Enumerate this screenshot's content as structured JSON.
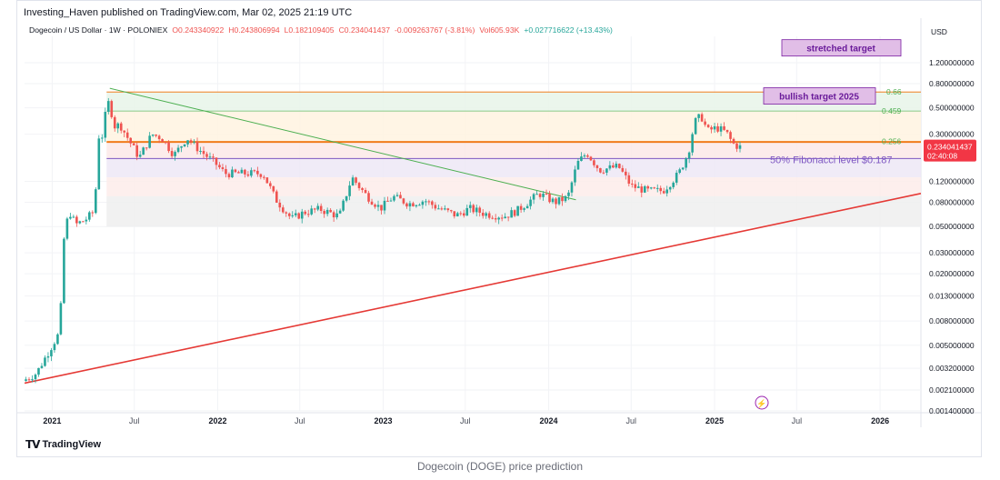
{
  "header": {
    "published": "Investing_Haven published on TradingView.com, Mar 02, 2025 21:19 UTC"
  },
  "footer": {
    "brand": "TradingView",
    "caption": "Dogecoin (DOGE) price prediction"
  },
  "chart_data": {
    "type": "candlestick",
    "legend": {
      "symbol": "Dogecoin / US Dollar · 1W · POLONIEX",
      "open": "O0.243340922",
      "high": "H0.243806994",
      "low": "L0.182109405",
      "close": "C0.234041437",
      "change": "-0.009263767 (-3.81%)",
      "volume": "Vol605.93K",
      "extra": "+0.027716622 (+13.43%)"
    },
    "currency": "USD",
    "scale": "log",
    "ylim": [
      0.0014,
      2.0
    ],
    "xlim": [
      "2020-11-01",
      "2026-04-01"
    ],
    "y_ticks": [
      {
        "value": 1.2,
        "label": "1.200000000"
      },
      {
        "value": 0.8,
        "label": "0.800000000"
      },
      {
        "value": 0.5,
        "label": "0.500000000"
      },
      {
        "value": 0.3,
        "label": "0.300000000"
      },
      {
        "value": 0.12,
        "label": "0.120000000"
      },
      {
        "value": 0.08,
        "label": "0.080000000"
      },
      {
        "value": 0.05,
        "label": "0.050000000"
      },
      {
        "value": 0.03,
        "label": "0.030000000"
      },
      {
        "value": 0.02,
        "label": "0.020000000"
      },
      {
        "value": 0.013,
        "label": "0.013000000"
      },
      {
        "value": 0.008,
        "label": "0.008000000"
      },
      {
        "value": 0.005,
        "label": "0.005000000"
      },
      {
        "value": 0.0032,
        "label": "0.003200000"
      },
      {
        "value": 0.0021,
        "label": "0.002100000"
      },
      {
        "value": 0.0014,
        "label": "0.001400000"
      }
    ],
    "x_ticks": [
      {
        "date": "2021-01-01",
        "label": "2021",
        "major": true
      },
      {
        "date": "2021-07-01",
        "label": "Jul",
        "major": false
      },
      {
        "date": "2022-01-01",
        "label": "2022",
        "major": true
      },
      {
        "date": "2022-07-01",
        "label": "Jul",
        "major": false
      },
      {
        "date": "2023-01-01",
        "label": "2023",
        "major": true
      },
      {
        "date": "2023-07-01",
        "label": "Jul",
        "major": false
      },
      {
        "date": "2024-01-01",
        "label": "2024",
        "major": true
      },
      {
        "date": "2024-07-01",
        "label": "Jul",
        "major": false
      },
      {
        "date": "2025-01-01",
        "label": "2025",
        "major": true
      },
      {
        "date": "2025-07-01",
        "label": "Jul",
        "major": false
      },
      {
        "date": "2026-01-01",
        "label": "2026",
        "major": true
      }
    ],
    "last_price": {
      "value": 0.234041437,
      "label": "0.234041437",
      "countdown": "02:40:08"
    },
    "fib_levels": [
      {
        "ratio_label": "0.66",
        "value": 0.68
      },
      {
        "ratio_label": "0.459",
        "value": 0.47
      },
      {
        "ratio_label": "0.256",
        "value": 0.26
      }
    ],
    "fib_zone": {
      "start": "2021-05-01",
      "end": "2026-04-01",
      "top": 0.68,
      "bottom": 0.05
    },
    "annotations": {
      "stretched_target": {
        "text": "stretched target",
        "value": 1.6
      },
      "bullish_target": {
        "text": "bullish target 2025",
        "value": 0.63
      },
      "fib_50": {
        "text": "50% Fibonacci level $0.187",
        "value": 0.187
      }
    },
    "trendlines": [
      {
        "name": "downtrend",
        "from": [
          "2021-05-08",
          0.73
        ],
        "to": [
          "2024-03-01",
          0.084
        ],
        "color": "#4caf50"
      },
      {
        "name": "long-term support",
        "from": [
          "2020-11-01",
          0.0024
        ],
        "to": [
          "2026-04-01",
          0.095
        ],
        "color": "#e53935"
      }
    ],
    "horizontal_lines": [
      {
        "value": 0.256,
        "color": "#ef6c00"
      },
      {
        "value": 0.187,
        "color": "#7e57c2"
      }
    ],
    "price_points": [
      [
        "2020-11-01",
        0.0025
      ],
      [
        "2020-12-01",
        0.0029
      ],
      [
        "2021-01-01",
        0.0047
      ],
      [
        "2021-01-22",
        0.0065
      ],
      [
        "2021-01-29",
        0.035
      ],
      [
        "2021-02-05",
        0.052
      ],
      [
        "2021-02-12",
        0.067
      ],
      [
        "2021-02-26",
        0.052
      ],
      [
        "2021-03-19",
        0.057
      ],
      [
        "2021-04-09",
        0.068
      ],
      [
        "2021-04-16",
        0.3
      ],
      [
        "2021-04-23",
        0.26
      ],
      [
        "2021-05-07",
        0.57
      ],
      [
        "2021-05-14",
        0.5
      ],
      [
        "2021-05-21",
        0.35
      ],
      [
        "2021-06-04",
        0.36
      ],
      [
        "2021-06-25",
        0.26
      ],
      [
        "2021-07-16",
        0.19
      ],
      [
        "2021-08-13",
        0.3
      ],
      [
        "2021-09-03",
        0.28
      ],
      [
        "2021-10-01",
        0.2
      ],
      [
        "2021-10-29",
        0.28
      ],
      [
        "2021-11-26",
        0.22
      ],
      [
        "2021-12-31",
        0.17
      ],
      [
        "2022-01-21",
        0.14
      ],
      [
        "2022-02-18",
        0.14
      ],
      [
        "2022-03-25",
        0.14
      ],
      [
        "2022-04-15",
        0.14
      ],
      [
        "2022-05-13",
        0.085
      ],
      [
        "2022-06-17",
        0.058
      ],
      [
        "2022-07-15",
        0.066
      ],
      [
        "2022-08-19",
        0.07
      ],
      [
        "2022-09-30",
        0.061
      ],
      [
        "2022-10-28",
        0.13
      ],
      [
        "2022-11-25",
        0.095
      ],
      [
        "2022-12-30",
        0.071
      ],
      [
        "2023-01-27",
        0.089
      ],
      [
        "2023-03-03",
        0.078
      ],
      [
        "2023-04-07",
        0.083
      ],
      [
        "2023-05-05",
        0.072
      ],
      [
        "2023-06-16",
        0.062
      ],
      [
        "2023-07-14",
        0.071
      ],
      [
        "2023-08-18",
        0.064
      ],
      [
        "2023-09-29",
        0.061
      ],
      [
        "2023-10-27",
        0.068
      ],
      [
        "2023-12-15",
        0.095
      ],
      [
        "2024-01-19",
        0.08
      ],
      [
        "2024-02-16",
        0.088
      ],
      [
        "2024-03-08",
        0.17
      ],
      [
        "2024-03-29",
        0.21
      ],
      [
        "2024-04-26",
        0.15
      ],
      [
        "2024-06-07",
        0.16
      ],
      [
        "2024-07-05",
        0.11
      ],
      [
        "2024-08-09",
        0.1
      ],
      [
        "2024-09-13",
        0.1
      ],
      [
        "2024-10-18",
        0.14
      ],
      [
        "2024-11-08",
        0.21
      ],
      [
        "2024-11-22",
        0.38
      ],
      [
        "2024-12-06",
        0.43
      ],
      [
        "2024-12-20",
        0.32
      ],
      [
        "2025-01-10",
        0.34
      ],
      [
        "2025-01-31",
        0.31
      ],
      [
        "2025-02-14",
        0.25
      ],
      [
        "2025-02-28",
        0.234
      ]
    ]
  }
}
